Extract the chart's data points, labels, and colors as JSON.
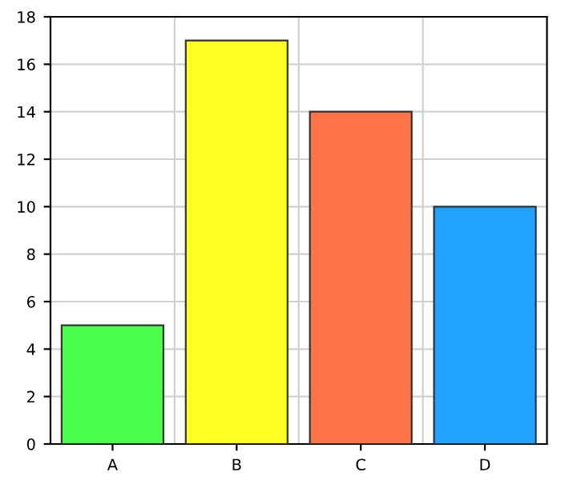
{
  "chart_data": {
    "type": "bar",
    "categories": [
      "A",
      "B",
      "C",
      "D"
    ],
    "values": [
      5,
      17,
      14,
      10
    ],
    "colors": [
      "#4dff4d",
      "#ffff22",
      "#ff7349",
      "#1fa5ff"
    ],
    "ylim": [
      0,
      18
    ],
    "yticks": [
      0,
      2,
      4,
      6,
      8,
      10,
      12,
      14,
      16,
      18
    ],
    "grid": true
  }
}
